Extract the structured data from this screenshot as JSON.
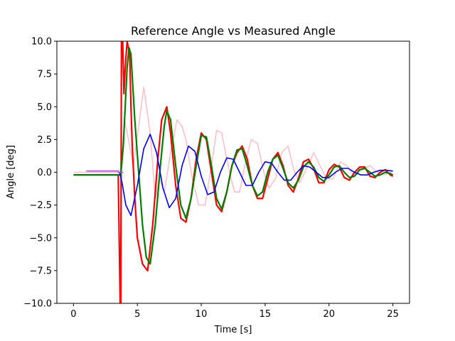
{
  "chart_data": {
    "type": "line",
    "title": "Reference Angle vs Measured Angle",
    "xlabel": "Time [s]",
    "ylabel": "Angle [deg]",
    "xlim": [
      -1.3,
      26.3
    ],
    "ylim": [
      -10,
      10
    ],
    "xticks": [
      0,
      5,
      10,
      15,
      20,
      25
    ],
    "xtick_labels": [
      "0",
      "5",
      "10",
      "15",
      "20",
      "25"
    ],
    "yticks": [
      -10,
      -7.5,
      -5,
      -2.5,
      0,
      2.5,
      5,
      7.5,
      10
    ],
    "ytick_labels": [
      "−10.0",
      "−7.5",
      "−5.0",
      "−2.5",
      "0.0",
      "2.5",
      "5.0",
      "7.5",
      "10.0"
    ],
    "grid": false,
    "legend": "none",
    "series": [
      {
        "color": "#ffc0cb",
        "x": [
          0,
          0.9,
          3.6,
          3.65,
          3.75,
          3.85,
          4.0,
          4.3,
          4.7,
          5.1,
          5.5,
          6.0,
          6.4,
          6.7,
          7.1,
          7.6,
          8.1,
          8.5,
          8.8,
          9.3,
          9.8,
          10.3,
          10.8,
          11.2,
          11.6,
          12.1,
          12.6,
          13.0,
          13.4,
          13.9,
          14.4,
          14.9,
          15.3,
          15.8,
          16.3,
          16.8,
          17.2,
          17.7,
          18.2,
          18.8,
          19.3,
          19.8,
          20.3,
          20.9,
          21.4,
          22.0,
          22.6,
          23.2,
          23.8,
          24.4,
          25.0
        ],
        "y": [
          0,
          0,
          0,
          0.2,
          1.0,
          2.0,
          4.0,
          2.5,
          0.5,
          3.5,
          6.5,
          3.0,
          -2.0,
          -0.5,
          -1.5,
          1.5,
          4.0,
          3.5,
          2.5,
          -0.5,
          -2.5,
          -2.5,
          0.5,
          3.2,
          3.0,
          0.5,
          -1.5,
          -1.5,
          0.5,
          2.5,
          2.2,
          0.0,
          -1.2,
          -0.5,
          1.5,
          2.0,
          0.3,
          -0.8,
          0.2,
          1.5,
          0.5,
          -0.5,
          -0.5,
          0.8,
          0.5,
          -0.3,
          0.2,
          0.5,
          0.0,
          -0.2,
          0.1
        ]
      },
      {
        "color": "#ff0000",
        "x": [
          0,
          1.0,
          2.0,
          3.0,
          3.5,
          3.65,
          3.7,
          3.75,
          3.85,
          3.95,
          4.05,
          4.2,
          4.4,
          4.5,
          4.6,
          4.8,
          5.0,
          5.4,
          5.8,
          6.2,
          6.6,
          6.9,
          7.3,
          7.6,
          8.0,
          8.4,
          8.8,
          9.2,
          9.6,
          10.0,
          10.4,
          10.8,
          11.2,
          11.6,
          12.0,
          12.4,
          12.8,
          13.2,
          13.6,
          14.0,
          14.4,
          14.8,
          15.2,
          15.6,
          16.0,
          16.4,
          16.8,
          17.2,
          17.6,
          18.0,
          18.4,
          18.8,
          19.2,
          19.6,
          20.0,
          20.4,
          20.8,
          21.2,
          21.6,
          22.0,
          22.4,
          22.8,
          23.2,
          23.6,
          24.0,
          24.4,
          24.8,
          25.0
        ],
        "y": [
          -0.2,
          -0.2,
          -0.2,
          -0.2,
          -0.2,
          -10,
          -10,
          10,
          10,
          6.0,
          8.0,
          10,
          9.0,
          5.0,
          2.0,
          -2.0,
          -5.0,
          -7.0,
          -7.5,
          -4.0,
          1.0,
          4.0,
          5.0,
          3.0,
          -1.0,
          -3.5,
          -3.8,
          -2.0,
          1.0,
          3.0,
          2.5,
          0.0,
          -2.5,
          -3.0,
          -1.5,
          0.5,
          1.5,
          2.0,
          1.0,
          -1.0,
          -2.0,
          -2.0,
          -0.5,
          1.0,
          1.5,
          0.5,
          -1.0,
          -1.5,
          -0.5,
          0.8,
          1.0,
          0.3,
          -0.8,
          -0.8,
          0.2,
          0.6,
          0.4,
          -0.4,
          -0.6,
          0.0,
          0.4,
          0.4,
          -0.3,
          -0.4,
          0.0,
          0.2,
          -0.2,
          -0.3
        ]
      },
      {
        "color": "#008000",
        "x": [
          0,
          1.0,
          2.0,
          3.0,
          3.7,
          3.9,
          4.2,
          4.35,
          4.5,
          4.8,
          5.1,
          5.4,
          5.7,
          6.0,
          6.4,
          6.8,
          7.1,
          7.3,
          7.6,
          8.0,
          8.4,
          8.8,
          9.2,
          9.6,
          10.0,
          10.4,
          10.8,
          11.2,
          11.6,
          12.0,
          12.4,
          12.8,
          13.2,
          13.6,
          14.0,
          14.4,
          14.8,
          15.2,
          15.6,
          16.0,
          16.4,
          16.8,
          17.2,
          17.6,
          18.0,
          18.4,
          18.8,
          19.2,
          19.6,
          20.0,
          20.4,
          20.8,
          21.2,
          21.6,
          22.0,
          22.4,
          22.8,
          23.2,
          23.6,
          24.0,
          24.4,
          24.8,
          25.0
        ],
        "y": [
          -0.2,
          -0.2,
          -0.2,
          -0.2,
          -0.2,
          2.0,
          8.0,
          9.5,
          9.0,
          4.0,
          0.0,
          -4.0,
          -6.5,
          -7.0,
          -4.0,
          0.5,
          3.5,
          4.7,
          4.0,
          0.5,
          -2.5,
          -3.5,
          -2.0,
          0.5,
          2.8,
          2.7,
          0.5,
          -2.0,
          -2.8,
          -1.5,
          0.5,
          1.7,
          1.8,
          0.5,
          -1.0,
          -1.8,
          -1.5,
          0.0,
          1.0,
          1.3,
          0.3,
          -0.8,
          -1.2,
          -0.6,
          0.4,
          0.8,
          0.4,
          -0.4,
          -0.7,
          -0.2,
          0.4,
          0.5,
          0.0,
          -0.4,
          -0.3,
          0.2,
          0.3,
          0.0,
          -0.3,
          -0.2,
          0.0,
          -0.1,
          -0.2
        ]
      },
      {
        "color": "#0000ff",
        "x": [
          3.6,
          3.8,
          4.1,
          4.5,
          5.0,
          5.5,
          6.0,
          6.5,
          7.0,
          7.5,
          8.0,
          8.5,
          9.0,
          9.5,
          10.0,
          10.5,
          11.0,
          11.5,
          12.0,
          12.5,
          13.0,
          13.5,
          14.0,
          14.5,
          15.0,
          15.5,
          16.0,
          16.5,
          17.0,
          17.5,
          18.0,
          18.5,
          19.0,
          19.5,
          20.0,
          20.5,
          21.0,
          21.5,
          22.0,
          22.5,
          23.0,
          23.5,
          24.0,
          24.5,
          25.0
        ],
        "y": [
          0.0,
          -0.8,
          -2.5,
          -3.3,
          -1.0,
          1.8,
          2.9,
          1.5,
          -1.2,
          -2.7,
          -2.0,
          0.5,
          2.0,
          1.6,
          -0.3,
          -1.7,
          -1.5,
          0.0,
          1.1,
          1.0,
          0.0,
          -1.0,
          -1.0,
          0.0,
          0.8,
          0.7,
          0.0,
          -0.6,
          -0.6,
          0.0,
          0.5,
          0.4,
          0.0,
          -0.4,
          -0.4,
          0.0,
          0.3,
          0.3,
          0.0,
          -0.2,
          -0.2,
          0.0,
          0.15,
          0.15,
          0.1
        ]
      },
      {
        "color": "#b04fd8",
        "x": [
          1.0,
          3.5,
          3.5,
          3.9
        ],
        "y": [
          0.1,
          0.1,
          0.0,
          0.0
        ]
      }
    ]
  }
}
